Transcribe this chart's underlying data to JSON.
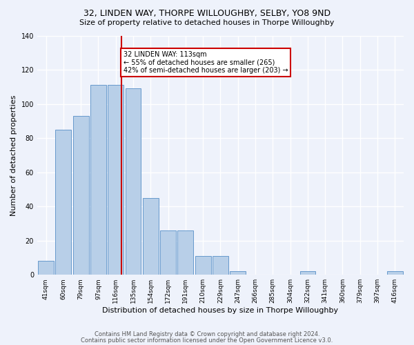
{
  "title": "32, LINDEN WAY, THORPE WILLOUGHBY, SELBY, YO8 9ND",
  "subtitle": "Size of property relative to detached houses in Thorpe Willoughby",
  "xlabel": "Distribution of detached houses by size in Thorpe Willoughby",
  "ylabel": "Number of detached properties",
  "bin_labels": [
    "41sqm",
    "60sqm",
    "79sqm",
    "97sqm",
    "116sqm",
    "135sqm",
    "154sqm",
    "172sqm",
    "191sqm",
    "210sqm",
    "229sqm",
    "247sqm",
    "266sqm",
    "285sqm",
    "304sqm",
    "322sqm",
    "341sqm",
    "360sqm",
    "379sqm",
    "397sqm",
    "416sqm"
  ],
  "bar_heights": [
    8,
    85,
    93,
    111,
    111,
    109,
    45,
    26,
    26,
    11,
    11,
    2,
    0,
    0,
    0,
    2,
    0,
    0,
    0,
    0,
    2
  ],
  "bar_color": "#b8cfe8",
  "bar_edge_color": "#6699cc",
  "vline_index": 4,
  "vline_color": "#cc0000",
  "annotation_text": "32 LINDEN WAY: 113sqm\n← 55% of detached houses are smaller (265)\n42% of semi-detached houses are larger (203) →",
  "annotation_box_color": "#ffffff",
  "annotation_box_edge": "#cc0000",
  "background_color": "#eef2fb",
  "grid_color": "#ffffff",
  "footnote1": "Contains HM Land Registry data © Crown copyright and database right 2024.",
  "footnote2": "Contains public sector information licensed under the Open Government Licence v3.0.",
  "ylim": [
    0,
    140
  ],
  "yticks": [
    0,
    20,
    40,
    60,
    80,
    100,
    120,
    140
  ],
  "title_fontsize": 9,
  "subtitle_fontsize": 8,
  "ylabel_fontsize": 8,
  "xlabel_fontsize": 8
}
